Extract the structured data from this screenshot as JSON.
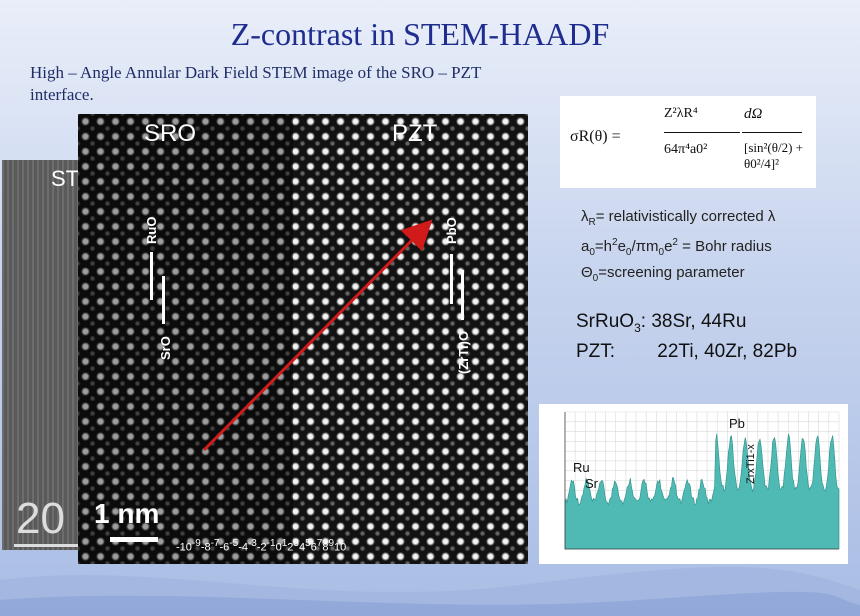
{
  "title": "Z-contrast in STEM-HAADF",
  "subtitle": "High – Angle Annular Dark Field STEM image of the SRO – PZT interface.",
  "back_image": {
    "label": "ST",
    "scale_value": "20"
  },
  "stem_image": {
    "label_left": "SRO",
    "label_right": "PZT",
    "col_ruo": "RuO",
    "col_sro": "SrO",
    "col_pbo": "PbO",
    "col_zrti": "(ZrTi)O",
    "scale_label": "1 nm",
    "axis_numbers": [
      "-10",
      "-9",
      "-8",
      "-7",
      "-6",
      "-5",
      "-4",
      "-3",
      "-2",
      "-1",
      "0",
      "1",
      "2",
      "3",
      "4",
      "5",
      "6",
      "7",
      "8",
      "9",
      "10"
    ]
  },
  "formula": {
    "lhs": "σR(θ) =",
    "numerator": "Z²λR⁴",
    "denominator": "64π⁴a0²",
    "differential": "dΩ",
    "bracket": "[sin²(θ/2) + θ0²/4]²"
  },
  "definitions": {
    "lambda_line": "= relativistically corrected λ",
    "bohr_line": "= Bohr radius",
    "theta_line": "=screening parameter"
  },
  "elements": {
    "sro_formula": "SrRuO",
    "sro_values": ": 38Sr, 44Ru",
    "pzt_formula": "PZT:",
    "pzt_values": "22Ti, 40Zr, 82Pb"
  },
  "profile": {
    "label_ru": "Ru",
    "label_sr": "Sr",
    "label_pb": "Pb",
    "label_zrti": "ZrxTi1-x",
    "fill_color": "#4fb9b3"
  },
  "colors": {
    "title": "#1f2d8f",
    "arrow": "#d11a1a"
  }
}
